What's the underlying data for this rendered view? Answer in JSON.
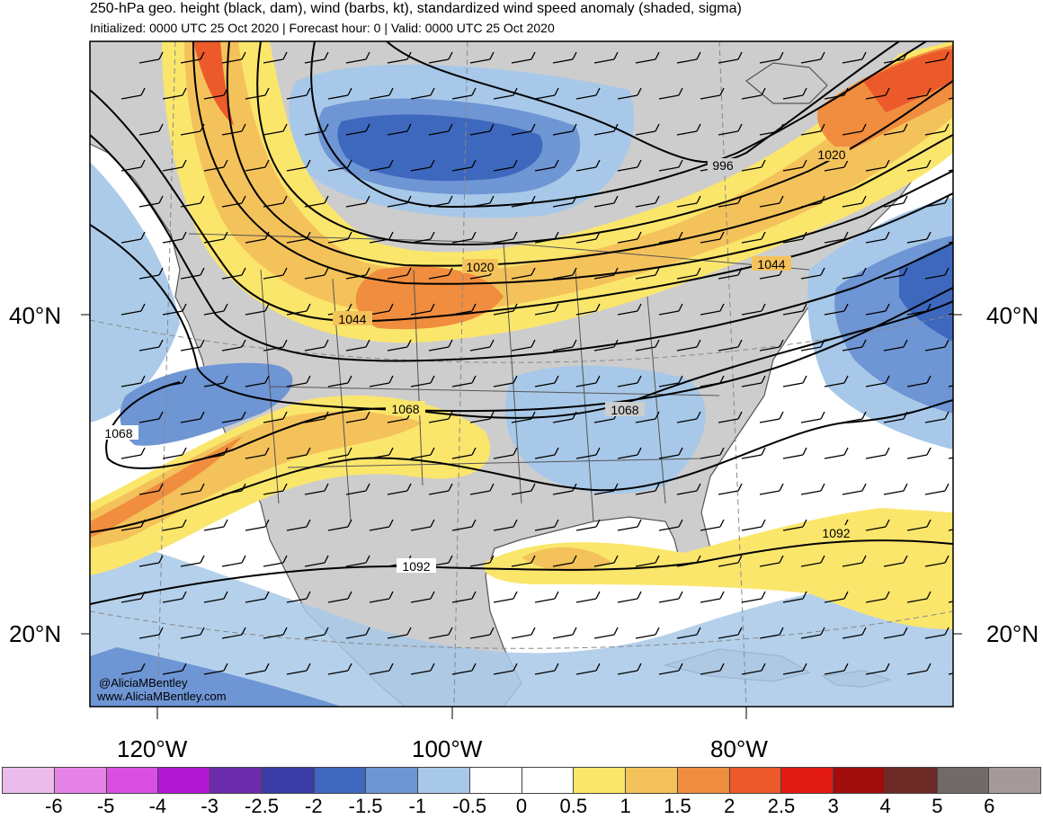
{
  "header": {
    "title": "250-hPa geo. height (black, dam), wind (barbs, kt), standardized wind speed anomaly (shaded, sigma)",
    "subtitle": "Initialized: 0000 UTC 25 Oct 2020 | Forecast hour: 0 | Valid: 0000 UTC 25 Oct 2020"
  },
  "map": {
    "lat_labels": {
      "n40_left": "40°N",
      "n40_right": "40°N",
      "n20_left": "20°N",
      "n20_right": "20°N"
    },
    "lon_labels": {
      "w120": "120°W",
      "w100": "100°W",
      "w80": "80°W"
    },
    "contour_labels": [
      "996",
      "1020",
      "1020",
      "1044",
      "1044",
      "1068",
      "1068",
      "1068",
      "1092",
      "1092"
    ],
    "credit": {
      "handle": "@AliciaMBentley",
      "site": "www.AliciaMBentley.com"
    },
    "colors": {
      "land": "#cdcdcd",
      "contour": "#000000",
      "coast": "#555555"
    }
  },
  "colorbar": {
    "colors": [
      "#ebbceb",
      "#e583e6",
      "#d94fe2",
      "#b018d3",
      "#6b2cab",
      "#3b3ca6",
      "#3d68be",
      "#6e95d4",
      "#a7c8e8",
      "#ffffff",
      "#ffffff",
      "#fbe66c",
      "#f4c25a",
      "#f08d3e",
      "#ec5a2b",
      "#e21a14",
      "#a10c0c",
      "#6e2a26",
      "#726a6a",
      "#a49a9a"
    ],
    "labels": [
      "-6",
      "-5",
      "-4",
      "-3",
      "-2.5",
      "-2",
      "-1.5",
      "-1",
      "-0.5",
      "0",
      "0.5",
      "1",
      "1.5",
      "2",
      "2.5",
      "3",
      "4",
      "5",
      "6"
    ]
  }
}
